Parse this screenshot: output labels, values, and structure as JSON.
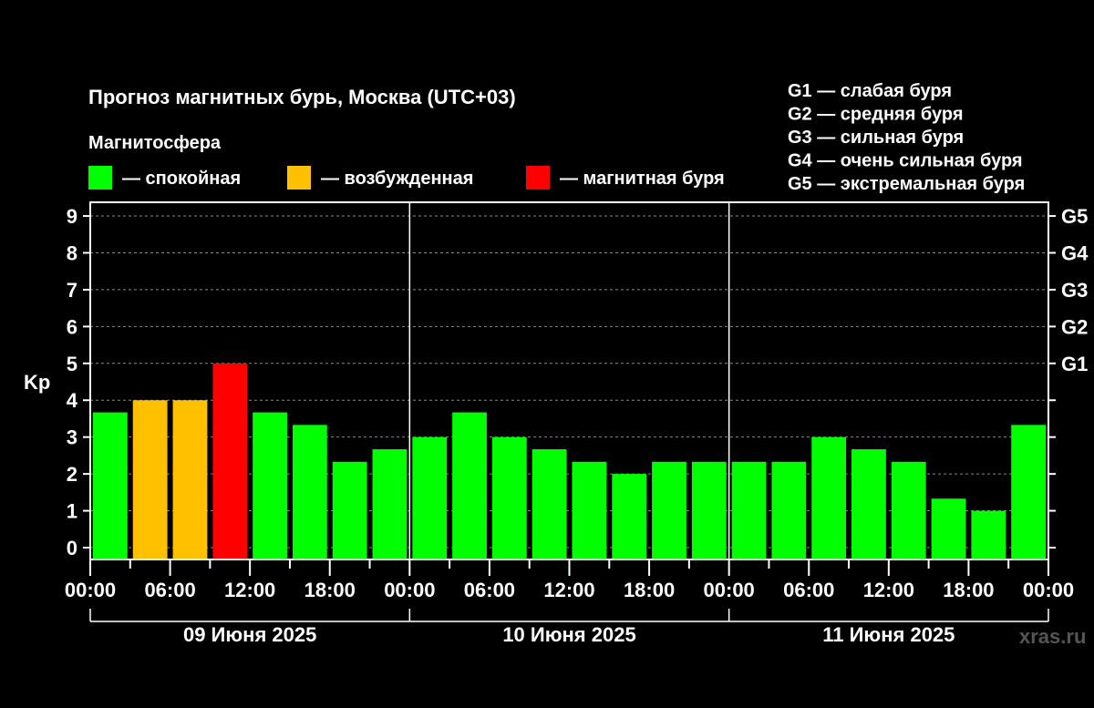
{
  "chart_data": {
    "type": "bar",
    "title": "Прогноз магнитных бурь, Москва (UTC+03)",
    "legend_title": "Магнитосфера",
    "legend": [
      {
        "label": "— спокойная",
        "color": "#00ff00"
      },
      {
        "label": "— возбужденная",
        "color": "#ffc000"
      },
      {
        "label": "— магнитная буря",
        "color": "#ff0000"
      }
    ],
    "storm_scale": [
      "G1 — слабая буря",
      "G2 — средняя буря",
      "G3 — сильная буря",
      "G4 — очень сильная буря",
      "G5 — экстремальная буря"
    ],
    "ylabel": "Kp",
    "ylim": [
      0,
      9
    ],
    "yticks": [
      "0",
      "1",
      "2",
      "3",
      "4",
      "5",
      "6",
      "7",
      "8",
      "9"
    ],
    "right_ticks": [
      {
        "kp": 5,
        "label": "G1"
      },
      {
        "kp": 6,
        "label": "G2"
      },
      {
        "kp": 7,
        "label": "G3"
      },
      {
        "kp": 8,
        "label": "G4"
      },
      {
        "kp": 9,
        "label": "G5"
      }
    ],
    "xticks": [
      "00:00",
      "06:00",
      "12:00",
      "18:00",
      "00:00",
      "06:00",
      "12:00",
      "18:00",
      "00:00",
      "06:00",
      "12:00",
      "18:00",
      "00:00"
    ],
    "days": [
      "09 Июня 2025",
      "10 Июня 2025",
      "11 Июня 2025"
    ],
    "interval_hours": 3,
    "values": [
      3.67,
      4,
      4,
      5,
      3.67,
      3.33,
      2.33,
      2.67,
      3,
      3.67,
      3,
      2.67,
      2.33,
      2,
      2.33,
      2.33,
      2.33,
      2.33,
      3,
      2.67,
      2.33,
      1.33,
      1,
      3.33
    ],
    "grid": true
  },
  "watermark": "xras.ru"
}
